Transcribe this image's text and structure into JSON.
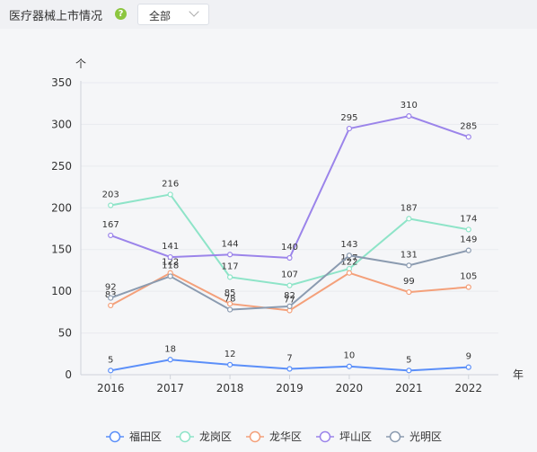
{
  "header": {
    "title": "医疗器械上市情况",
    "help_icon": "question-icon",
    "help_glyph": "?",
    "select_value": "全部"
  },
  "chart_data": {
    "type": "line",
    "x": [
      "2016",
      "2017",
      "2018",
      "2019",
      "2020",
      "2021",
      "2022"
    ],
    "xlabel": "年",
    "ylabel": "个",
    "ylim": [
      0,
      350
    ],
    "yticks": [
      0,
      50,
      100,
      150,
      200,
      250,
      300,
      350
    ],
    "legend_position": "bottom",
    "series": [
      {
        "name": "福田区",
        "color": "#5b8ff9",
        "values": [
          5,
          18,
          12,
          7,
          10,
          5,
          9
        ]
      },
      {
        "name": "龙岗区",
        "color": "#8ee4c8",
        "values": [
          203,
          216,
          117,
          107,
          127,
          187,
          174
        ]
      },
      {
        "name": "龙华区",
        "color": "#f4a07a",
        "values": [
          83,
          122,
          85,
          77,
          122,
          99,
          105
        ]
      },
      {
        "name": "坪山区",
        "color": "#9b84ea",
        "values": [
          167,
          141,
          144,
          140,
          295,
          310,
          285
        ]
      },
      {
        "name": "光明区",
        "color": "#8b9bb0",
        "values": [
          92,
          118,
          78,
          82,
          143,
          131,
          149
        ]
      }
    ]
  }
}
